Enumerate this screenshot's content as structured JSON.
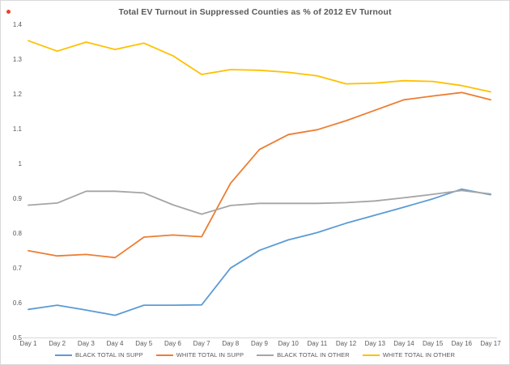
{
  "chart_data": {
    "type": "line",
    "title": "Total EV Turnout in Suppressed Counties as % of 2012 EV Turnout",
    "categories": [
      "Day 1",
      "Day 2",
      "Day 3",
      "Day 4",
      "Day 5",
      "Day 6",
      "Day 7",
      "Day 8",
      "Day 9",
      "Day 10",
      "Day 11",
      "Day 12",
      "Day 13",
      "Day 14",
      "Day 15",
      "Day 16",
      "Day 17"
    ],
    "series": [
      {
        "name": "BLACK TOTAL IN SUPP",
        "color": "#5B9BD5",
        "values": [
          0.582,
          0.594,
          0.58,
          0.565,
          0.594,
          0.594,
          0.595,
          0.701,
          0.752,
          0.782,
          0.803,
          0.83,
          0.853,
          0.876,
          0.9,
          0.928,
          0.912
        ]
      },
      {
        "name": "WHITE TOTAL IN SUPP",
        "color": "#ED7D31",
        "values": [
          0.751,
          0.736,
          0.74,
          0.731,
          0.79,
          0.796,
          0.791,
          0.945,
          1.042,
          1.085,
          1.099,
          1.125,
          1.155,
          1.185,
          1.196,
          1.206,
          1.185
        ]
      },
      {
        "name": "BLACK TOTAL IN OTHER",
        "color": "#A5A5A5",
        "values": [
          0.882,
          0.888,
          0.922,
          0.922,
          0.917,
          0.883,
          0.856,
          0.881,
          0.887,
          0.887,
          0.887,
          0.889,
          0.894,
          0.903,
          0.913,
          0.924,
          0.914
        ]
      },
      {
        "name": "WHITE TOTAL IN OTHER",
        "color": "#FFC000",
        "values": [
          1.355,
          1.325,
          1.351,
          1.33,
          1.348,
          1.312,
          1.258,
          1.272,
          1.27,
          1.264,
          1.254,
          1.231,
          1.233,
          1.24,
          1.238,
          1.226,
          1.208
        ]
      }
    ],
    "xlabel": "",
    "ylabel": "",
    "ylim": [
      0.5,
      1.4
    ],
    "y_ticks": [
      1.4,
      1.3,
      1.2,
      1.1,
      1,
      0.9,
      0.8,
      0.7,
      0.6,
      0.5
    ],
    "grid": false,
    "legend_position": "bottom",
    "colors": {
      "axis_text": "#595959",
      "axis_line": "#D9D9D9",
      "border": "#D9D9D9",
      "background": "#FFFFFF",
      "red_marker": "#E8432D"
    }
  }
}
